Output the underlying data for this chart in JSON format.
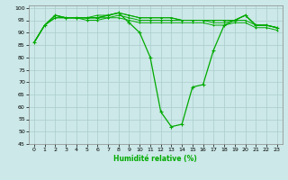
{
  "xlabel": "Humidité relative (%)",
  "bg_color": "#cce8e8",
  "grid_color": "#aacccc",
  "line_color": "#00aa00",
  "xlim": [
    -0.5,
    23.5
  ],
  "ylim": [
    45,
    101
  ],
  "xticks": [
    0,
    1,
    2,
    3,
    4,
    5,
    6,
    7,
    8,
    9,
    10,
    11,
    12,
    13,
    14,
    15,
    16,
    17,
    18,
    19,
    20,
    21,
    22,
    23
  ],
  "yticks": [
    45,
    50,
    55,
    60,
    65,
    70,
    75,
    80,
    85,
    90,
    95,
    100
  ],
  "series_main": [
    86,
    93,
    97,
    96,
    96,
    96,
    96,
    97,
    98,
    94,
    90,
    80,
    58,
    52,
    53,
    68,
    69,
    83,
    93,
    95,
    97,
    93,
    93,
    92
  ],
  "series_flat": [
    [
      86,
      93,
      97,
      96,
      96,
      96,
      96,
      97,
      98,
      97,
      96,
      96,
      96,
      96,
      95,
      95,
      95,
      95,
      95,
      95,
      97,
      93,
      93,
      92
    ],
    [
      86,
      93,
      97,
      96,
      96,
      96,
      97,
      97,
      98,
      97,
      96,
      96,
      96,
      96,
      95,
      95,
      95,
      95,
      95,
      95,
      97,
      93,
      93,
      92
    ],
    [
      86,
      93,
      96,
      96,
      96,
      96,
      96,
      96,
      97,
      96,
      95,
      95,
      95,
      95,
      95,
      95,
      95,
      94,
      94,
      95,
      95,
      93,
      93,
      92
    ],
    [
      86,
      93,
      96,
      96,
      96,
      95,
      95,
      96,
      96,
      95,
      94,
      94,
      94,
      94,
      94,
      94,
      94,
      93,
      93,
      94,
      94,
      92,
      92,
      91
    ]
  ]
}
